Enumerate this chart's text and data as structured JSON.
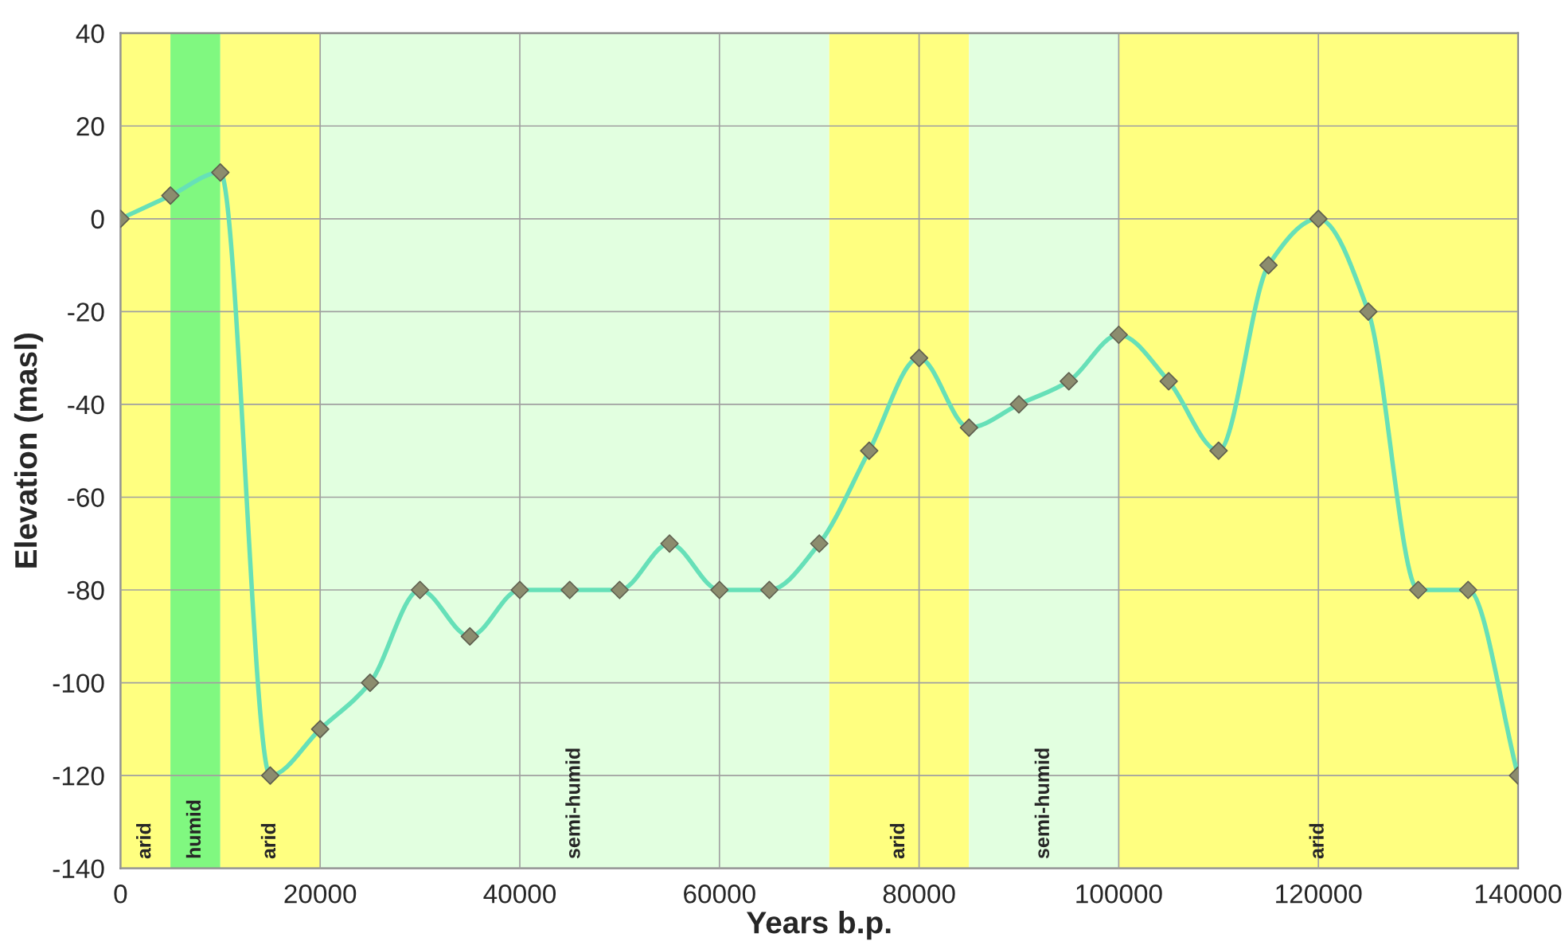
{
  "chart_data": {
    "type": "line",
    "xlabel": "Years b.p.",
    "ylabel": "Elevation (masl)",
    "x": [
      0,
      5000,
      10000,
      15000,
      20000,
      25000,
      30000,
      35000,
      40000,
      45000,
      50000,
      55000,
      60000,
      65000,
      70000,
      75000,
      80000,
      85000,
      90000,
      95000,
      100000,
      105000,
      110000,
      115000,
      120000,
      125000,
      130000,
      135000,
      140000
    ],
    "series": [
      {
        "color": "#66e0b8",
        "values": [
          0,
          5,
          10,
          -120,
          -110,
          -100,
          -80,
          -90,
          -80,
          -80,
          -80,
          -70,
          -80,
          -80,
          -70,
          -50,
          -30,
          -45,
          -40,
          -35,
          -25,
          -35,
          -50,
          -10,
          0,
          -20,
          -80,
          -80,
          -120
        ]
      }
    ],
    "marker": "diamond",
    "line_style": "solid",
    "xlim": [
      0,
      140000
    ],
    "xticks": [
      0,
      20000,
      40000,
      60000,
      80000,
      100000,
      120000,
      140000
    ],
    "ylim": [
      -140,
      40
    ],
    "yticks": [
      -140,
      -120,
      -100,
      -80,
      -60,
      -40,
      -20,
      0,
      20,
      40
    ],
    "grid": true,
    "bands": [
      {
        "axis": "x",
        "from": 0,
        "to": 5000,
        "label": "arid",
        "color": "#ffff80"
      },
      {
        "axis": "x",
        "from": 5000,
        "to": 10000,
        "label": "humid",
        "color": "#80f880"
      },
      {
        "axis": "x",
        "from": 10000,
        "to": 20000,
        "label": "arid",
        "color": "#ffff80"
      },
      {
        "axis": "x",
        "from": 20000,
        "to": 71000,
        "label": "semi-humid",
        "color": "#e2ffe0"
      },
      {
        "axis": "x",
        "from": 71000,
        "to": 85000,
        "label": "arid",
        "color": "#ffff80"
      },
      {
        "axis": "x",
        "from": 85000,
        "to": 100000,
        "label": "semi-humid",
        "color": "#e2ffe0"
      },
      {
        "axis": "x",
        "from": 100000,
        "to": 140000,
        "label": "arid",
        "color": "#ffff80"
      }
    ]
  }
}
